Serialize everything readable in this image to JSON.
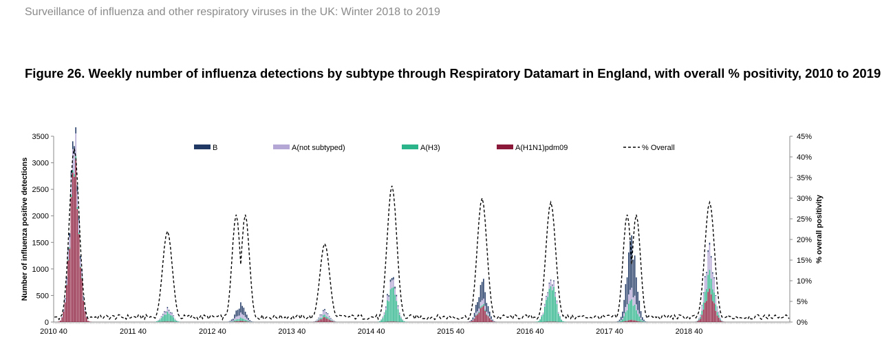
{
  "header": {
    "report_title": "Surveillance of influenza and other respiratory viruses in the UK: Winter 2018 to 2019"
  },
  "figure": {
    "title": "Figure 26. Weekly number of influenza detections by subtype through Respiratory Datamart in England, with overall % positivity, 2010 to 2019"
  },
  "chart_data": {
    "type": "bar",
    "stacked": true,
    "ylabel": "Number of influenza positive detections",
    "y2label": "% overall positivity",
    "ylim": [
      0,
      3500
    ],
    "y2lim": [
      0,
      45
    ],
    "y_ticks": [
      0,
      500,
      1000,
      1500,
      2000,
      2500,
      3000,
      3500
    ],
    "y2_ticks": [
      "0%",
      "5%",
      "10%",
      "15%",
      "20%",
      "25%",
      "30%",
      "35%",
      "40%",
      "45%"
    ],
    "x_tick_labels": [
      "2010 40",
      "2011 40",
      "2012 40",
      "2013 40",
      "2014 40",
      "2015 40",
      "2016 40",
      "2017 40",
      "2018 40"
    ],
    "weeks_per_season": 52,
    "legend": [
      "B",
      "A(not subtyped)",
      "A(H3)",
      "A(H1N1)pdm09",
      "% Overall"
    ],
    "legend_position": "top",
    "series_colors": {
      "B": "#1f3864",
      "A(not subtyped)": "#b4a7d6",
      "A(H3)": "#2bb38a",
      "A(H1N1)pdm09": "#8b1a3a",
      "% Overall": "#000000"
    },
    "seasons": [
      {
        "season": "2010 40",
        "peak_week": 13,
        "b": 150,
        "not_subtyped": 400,
        "h3": 50,
        "h1": 2850,
        "pct_peak": 42,
        "pct_shape": "single"
      },
      {
        "season": "2011 40",
        "peak_week": 22,
        "b": 20,
        "not_subtyped": 60,
        "h3": 170,
        "h1": 10,
        "pct_peak": 22,
        "pct_shape": "single"
      },
      {
        "season": "2012 40",
        "peak_week": 18,
        "b": 160,
        "not_subtyped": 80,
        "h3": 50,
        "h1": 20,
        "pct_peak": 26,
        "pct_shape": "double"
      },
      {
        "season": "2013 40",
        "peak_week": 21,
        "b": 20,
        "not_subtyped": 70,
        "h3": 40,
        "h1": 80,
        "pct_peak": 19,
        "pct_shape": "single"
      },
      {
        "season": "2014 40",
        "peak_week": 13,
        "b": 40,
        "not_subtyped": 130,
        "h3": 570,
        "h1": 10,
        "pct_peak": 33,
        "pct_shape": "single"
      },
      {
        "season": "2015 40",
        "peak_week": 20,
        "b": 330,
        "not_subtyped": 90,
        "h3": 30,
        "h1": 270,
        "pct_peak": 30,
        "pct_shape": "single"
      },
      {
        "season": "2016 40",
        "peak_week": 13,
        "b": 20,
        "not_subtyped": 110,
        "h3": 700,
        "h1": 10,
        "pct_peak": 29,
        "pct_shape": "single"
      },
      {
        "season": "2017 40",
        "peak_week": 14,
        "b": 900,
        "not_subtyped": 200,
        "h3": 350,
        "h1": 40,
        "pct_peak": 26,
        "pct_shape": "double"
      },
      {
        "season": "2018 40",
        "peak_week": 13,
        "b": 30,
        "not_subtyped": 400,
        "h3": 300,
        "h1": 530,
        "pct_peak": 29,
        "pct_shape": "single"
      }
    ]
  }
}
